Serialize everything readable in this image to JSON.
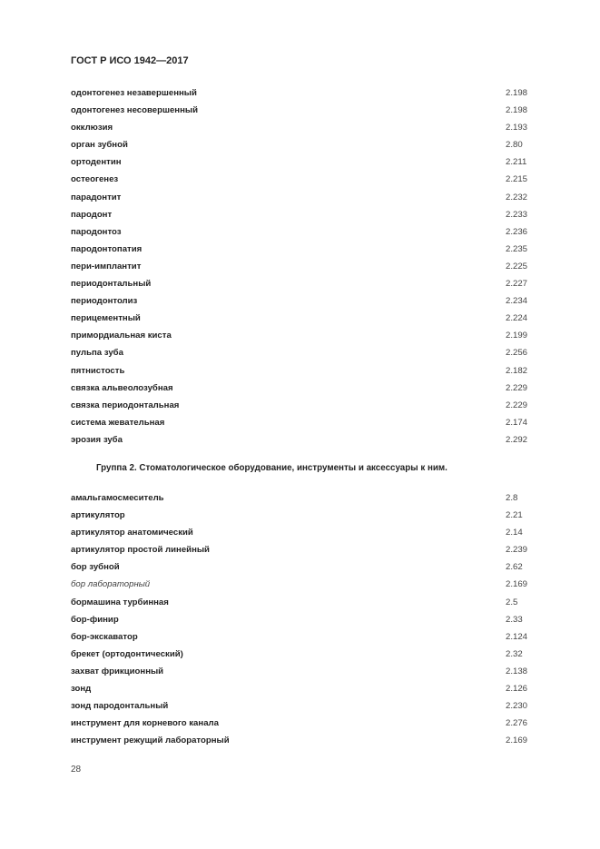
{
  "header": {
    "title": "ГОСТ Р ИСО 1942—2017"
  },
  "list1": [
    {
      "term": "одонтогенез незавершенный",
      "ref": "2.198"
    },
    {
      "term": "одонтогенез несовершенный",
      "ref": "2.198"
    },
    {
      "term": "окклюзия",
      "ref": "2.193"
    },
    {
      "term": "орган зубной",
      "ref": "2.80"
    },
    {
      "term": "ортодентин",
      "ref": "2.211"
    },
    {
      "term": "остеогенез",
      "ref": "2.215"
    },
    {
      "term": "парадонтит",
      "ref": "2.232"
    },
    {
      "term": "пародонт",
      "ref": "2.233"
    },
    {
      "term": "пародонтоз",
      "ref": "2.236"
    },
    {
      "term": "пародонтопатия",
      "ref": "2.235"
    },
    {
      "term": "пери-имплантит",
      "ref": "2.225"
    },
    {
      "term": "периодонтальный",
      "ref": "2.227"
    },
    {
      "term": "периодонтолиз",
      "ref": "2.234"
    },
    {
      "term": "перицементный",
      "ref": "2.224"
    },
    {
      "term": "примордиальная киста",
      "ref": "2.199"
    },
    {
      "term": "пульпа зуба",
      "ref": "2.256"
    },
    {
      "term": "пятнистость",
      "ref": "2.182"
    },
    {
      "term": "связка альвеолозубная",
      "ref": "2.229"
    },
    {
      "term": "связка периодонтальная",
      "ref": "2.229"
    },
    {
      "term": "система жевательная",
      "ref": "2.174"
    },
    {
      "term": "эрозия зуба",
      "ref": "2.292"
    }
  ],
  "group_heading": "Группа 2. Стоматологическое оборудование, инструменты и аксессуары к ним.",
  "list2": [
    {
      "term": "амальгамосмеситель",
      "ref": "2.8"
    },
    {
      "term": "артикулятор",
      "ref": "2.21"
    },
    {
      "term": "артикулятор анатомический",
      "ref": "2.14"
    },
    {
      "term": "артикулятор простой линейный",
      "ref": "2.239"
    },
    {
      "term": "бор зубной",
      "ref": "2.62"
    },
    {
      "term": "бор лабораторный",
      "ref": "2.169",
      "italic": true
    },
    {
      "term": "бормашина турбинная",
      "ref": "2.5"
    },
    {
      "term": "бор-финир",
      "ref": "2.33"
    },
    {
      "term": "бор-экскаватор",
      "ref": "2.124"
    },
    {
      "term": "брекет (ортодонтический)",
      "ref": "2.32"
    },
    {
      "term": "захват фрикционный",
      "ref": "2.138"
    },
    {
      "term": "зонд",
      "ref": "2.126"
    },
    {
      "term": "зонд пародонтальный",
      "ref": "2.230"
    },
    {
      "term": "инструмент для корневого канала",
      "ref": "2.276"
    },
    {
      "term": "инструмент режущий лабораторный",
      "ref": "2.169"
    }
  ],
  "page_number": "28"
}
